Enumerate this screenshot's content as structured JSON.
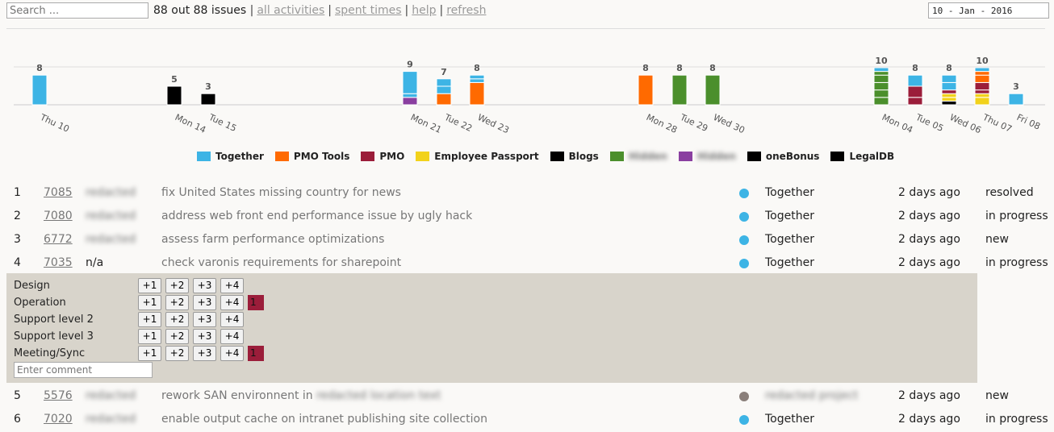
{
  "topbar": {
    "search_placeholder": "Search ...",
    "count_text": "88 out 88 issues",
    "links": [
      "all activities",
      "spent times",
      "help",
      "refresh"
    ],
    "date": "10 - Jan - 2016"
  },
  "chart_data": {
    "type": "bar",
    "stacked": true,
    "days": [
      {
        "label": "Thu 10",
        "total": 8,
        "segments": [
          {
            "series": "Together",
            "value": 8
          }
        ]
      },
      {
        "label": "Mon 14",
        "total": 5,
        "segments": [
          {
            "series": "Blogs",
            "value": 5
          }
        ]
      },
      {
        "label": "Tue 15",
        "total": 3,
        "segments": [
          {
            "series": "Blogs",
            "value": 3
          }
        ]
      },
      {
        "label": "Mon 21",
        "total": 9,
        "segments": [
          {
            "series": "Series 7",
            "value": 2
          },
          {
            "series": "Together",
            "value": 1
          },
          {
            "series": "Together",
            "value": 6
          }
        ]
      },
      {
        "label": "Tue 22",
        "total": 7,
        "segments": [
          {
            "series": "PMO Tools",
            "value": 3
          },
          {
            "series": "Together",
            "value": 2
          },
          {
            "series": "Together",
            "value": 2
          }
        ]
      },
      {
        "label": "Wed 23",
        "total": 8,
        "segments": [
          {
            "series": "PMO Tools",
            "value": 6
          },
          {
            "series": "Together",
            "value": 1
          },
          {
            "series": "Together",
            "value": 1
          }
        ]
      },
      {
        "label": "Mon 28",
        "total": 8,
        "segments": [
          {
            "series": "PMO Tools",
            "value": 8
          }
        ]
      },
      {
        "label": "Tue 29",
        "total": 8,
        "segments": [
          {
            "series": "Series 6",
            "value": 8
          }
        ]
      },
      {
        "label": "Wed 30",
        "total": 8,
        "segments": [
          {
            "series": "Series 6",
            "value": 8
          }
        ]
      },
      {
        "label": "Mon 04",
        "total": 10,
        "segments": [
          {
            "series": "Series 6",
            "value": 2
          },
          {
            "series": "Series 6",
            "value": 2
          },
          {
            "series": "Series 6",
            "value": 2
          },
          {
            "series": "Series 6",
            "value": 2
          },
          {
            "series": "Series 6",
            "value": 1
          },
          {
            "series": "Together",
            "value": 1
          }
        ]
      },
      {
        "label": "Tue 05",
        "total": 8,
        "segments": [
          {
            "series": "PMO",
            "value": 2
          },
          {
            "series": "PMO",
            "value": 3
          },
          {
            "series": "Together",
            "value": 3
          }
        ]
      },
      {
        "label": "Wed 06",
        "total": 8,
        "segments": [
          {
            "series": "Blogs",
            "value": 1
          },
          {
            "series": "Employee Passport",
            "value": 1
          },
          {
            "series": "Employee Passport",
            "value": 1
          },
          {
            "series": "PMO",
            "value": 1
          },
          {
            "series": "Together",
            "value": 2
          },
          {
            "series": "Together",
            "value": 2
          }
        ]
      },
      {
        "label": "Thu 07",
        "total": 10,
        "segments": [
          {
            "series": "Employee Passport",
            "value": 2
          },
          {
            "series": "Employee Passport",
            "value": 1
          },
          {
            "series": "PMO",
            "value": 1
          },
          {
            "series": "PMO",
            "value": 2
          },
          {
            "series": "PMO Tools",
            "value": 2
          },
          {
            "series": "PMO Tools",
            "value": 1
          },
          {
            "series": "Together",
            "value": 1
          }
        ]
      },
      {
        "label": "Fri 08",
        "total": 3,
        "segments": [
          {
            "series": "Together",
            "value": 3
          }
        ]
      }
    ],
    "ylim": [
      0,
      10
    ],
    "grid": true
  },
  "legend": [
    {
      "label": "Together",
      "color": "#3db4e5",
      "blurred": false
    },
    {
      "label": "PMO Tools",
      "color": "#ff6a00",
      "blurred": false
    },
    {
      "label": "PMO",
      "color": "#9b1d3a",
      "blurred": false
    },
    {
      "label": "Employee Passport",
      "color": "#f2d21b",
      "blurred": false
    },
    {
      "label": "Blogs",
      "color": "#000000",
      "blurred": false
    },
    {
      "label": "Hidden",
      "color": "#4b8f2c",
      "blurred": true
    },
    {
      "label": "Hidden",
      "color": "#8a3fa0",
      "blurred": true
    },
    {
      "label": "oneBonus",
      "color": "#000000",
      "blurred": false
    },
    {
      "label": "LegalDB",
      "color": "#000000",
      "blurred": false
    }
  ],
  "series_colors": {
    "Together": "#3db4e5",
    "PMO Tools": "#ff6a00",
    "PMO": "#9b1d3a",
    "Employee Passport": "#f2d21b",
    "Blogs": "#000000",
    "Series 6": "#4b8f2c",
    "Series 7": "#8a3fa0"
  },
  "issues": [
    {
      "num": "1",
      "id": "7085",
      "user": "redacted",
      "title": "fix United States missing country for news",
      "dot": "#3db4e5",
      "project": "Together",
      "time": "2 days ago",
      "status": "resolved",
      "user_blur": true,
      "title_blur": ""
    },
    {
      "num": "2",
      "id": "7080",
      "user": "redacted",
      "title": "address web front end performance issue by ugly hack",
      "dot": "#3db4e5",
      "project": "Together",
      "time": "2 days ago",
      "status": "in progress",
      "user_blur": true,
      "title_blur": ""
    },
    {
      "num": "3",
      "id": "6772",
      "user": "redacted",
      "title": "assess farm performance optimizations",
      "dot": "#3db4e5",
      "project": "Together",
      "time": "2 days ago",
      "status": "new",
      "user_blur": true,
      "title_blur": ""
    },
    {
      "num": "4",
      "id": "7035",
      "user": "n/a",
      "title": "check varonis requirements for sharepoint",
      "dot": "#3db4e5",
      "project": "Together",
      "time": "2 days ago",
      "status": "in progress",
      "user_blur": false,
      "title_blur": ""
    }
  ],
  "issues_after": [
    {
      "num": "5",
      "id": "5576",
      "user": "redacted",
      "title": "rework SAN environnent in",
      "dot": "#8a7f7a",
      "project": "redacted project",
      "time": "2 days ago",
      "status": "new",
      "user_blur": true,
      "title_blur": "redacted location text"
    },
    {
      "num": "6",
      "id": "7020",
      "user": "redacted",
      "title": "enable output cache on intranet publishing site collection",
      "dot": "#3db4e5",
      "project": "Together",
      "time": "2 days ago",
      "status": "in progress",
      "user_blur": true,
      "title_blur": ""
    }
  ],
  "panel": {
    "activities": [
      {
        "label": "Design",
        "value": ""
      },
      {
        "label": "Operation",
        "value": "1"
      },
      {
        "label": "Support level 2",
        "value": ""
      },
      {
        "label": "Support level 3",
        "value": ""
      },
      {
        "label": "Meeting/Sync",
        "value": "1"
      }
    ],
    "buttons": [
      "+1",
      "+2",
      "+3",
      "+4"
    ],
    "comment_placeholder": "Enter comment"
  }
}
